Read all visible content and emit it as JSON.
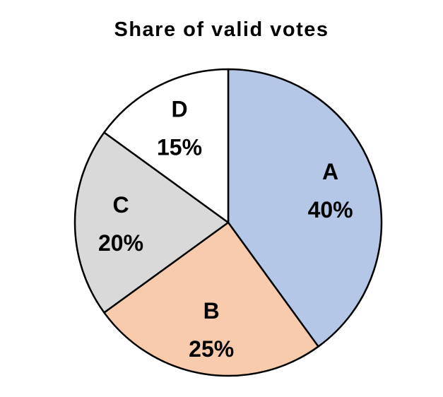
{
  "chart_data": {
    "type": "pie",
    "title": "Share of valid votes",
    "slices": [
      {
        "label": "A",
        "value": 40,
        "value_label": "40%",
        "color": "#B4C7E7"
      },
      {
        "label": "B",
        "value": 25,
        "value_label": "25%",
        "color": "#F8CBAD"
      },
      {
        "label": "C",
        "value": 20,
        "value_label": "20%",
        "color": "#D9D9D9"
      },
      {
        "label": "D",
        "value": 15,
        "value_label": "15%",
        "color": "#FFFFFF"
      }
    ],
    "start_angle": "12 o'clock",
    "direction": "clockwise",
    "legend": "none",
    "labels_inside": true
  }
}
